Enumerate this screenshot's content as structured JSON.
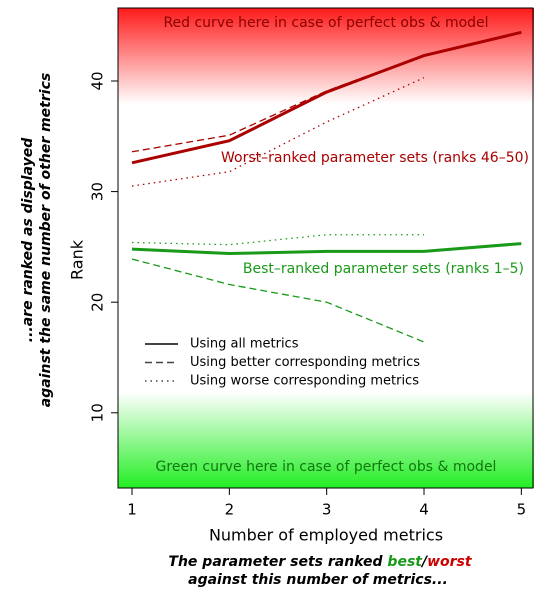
{
  "chart_data": {
    "type": "line",
    "x_label": "Number of employed metrics",
    "y_label": "Rank",
    "x": [
      1,
      2,
      3,
      4,
      5
    ],
    "xlim": [
      0.856,
      5.13
    ],
    "ylim": [
      3.2,
      46.6
    ],
    "xticks": [
      1,
      2,
      3,
      4,
      5
    ],
    "yticks": [
      10,
      20,
      30,
      40
    ],
    "series": [
      {
        "color": "#aa0000",
        "dash": "solid",
        "values": [
          32.6,
          34.6,
          39.0,
          42.3,
          44.4
        ]
      },
      {
        "color": "#aa0000",
        "dash": "dashed",
        "values": [
          33.6,
          35.1,
          39.1,
          42.3,
          null
        ]
      },
      {
        "color": "#aa0000",
        "dash": "dotted",
        "values": [
          30.5,
          31.8,
          36.3,
          40.3,
          null
        ]
      },
      {
        "color": "#1a9a1a",
        "dash": "solid",
        "values": [
          24.8,
          24.4,
          24.6,
          24.6,
          25.3
        ]
      },
      {
        "color": "#1a9a1a",
        "dash": "dashed",
        "values": [
          23.9,
          21.6,
          20.0,
          16.4,
          null
        ]
      },
      {
        "color": "#1a9a1a",
        "dash": "dotted",
        "values": [
          25.4,
          25.2,
          26.1,
          26.1,
          null
        ]
      }
    ],
    "legend": [
      {
        "label": "Using all metrics",
        "dash": "solid"
      },
      {
        "label": "Using better corresponding metrics",
        "dash": "dashed"
      },
      {
        "label": "Using worse corresponding metrics",
        "dash": "dotted"
      }
    ],
    "annotations": {
      "top": "Red curve here in case of perfect obs & model",
      "worst": "Worst–ranked parameter sets (ranks 46–50)",
      "best": "Best–ranked parameter sets (ranks 1–5)",
      "bottom": "Green curve here in case of perfect obs & model"
    },
    "side_label": [
      "...are ranked as displayed",
      "against the same number of other metrics"
    ],
    "caption": {
      "prefix": "The parameter sets ranked ",
      "best": "best",
      "slash": "/",
      "worst": "worst",
      "line2": "against this number of metrics..."
    }
  }
}
